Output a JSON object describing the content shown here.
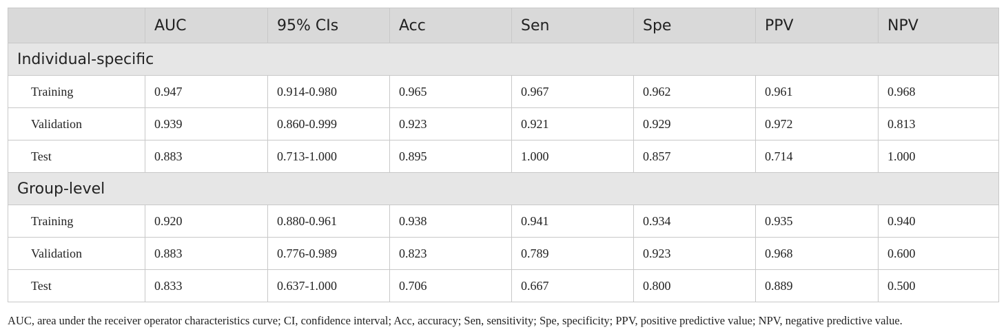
{
  "table": {
    "headers": [
      "",
      "AUC",
      "95% CIs",
      "Acc",
      "Sen",
      "Spe",
      "PPV",
      "NPV"
    ],
    "sections": [
      {
        "title": "Individual-specific",
        "rows": [
          {
            "label": "Training",
            "values": [
              "0.947",
              "0.914-0.980",
              "0.965",
              "0.967",
              "0.962",
              "0.961",
              "0.968"
            ]
          },
          {
            "label": "Validation",
            "values": [
              "0.939",
              "0.860-0.999",
              "0.923",
              "0.921",
              "0.929",
              "0.972",
              "0.813"
            ]
          },
          {
            "label": "Test",
            "values": [
              "0.883",
              "0.713-1.000",
              "0.895",
              "1.000",
              "0.857",
              "0.714",
              "1.000"
            ]
          }
        ]
      },
      {
        "title": "Group-level",
        "rows": [
          {
            "label": "Training",
            "values": [
              "0.920",
              "0.880-0.961",
              "0.938",
              "0.941",
              "0.934",
              "0.935",
              "0.940"
            ]
          },
          {
            "label": "Validation",
            "values": [
              "0.883",
              "0.776-0.989",
              "0.823",
              "0.789",
              "0.923",
              "0.968",
              "0.600"
            ]
          },
          {
            "label": "Test",
            "values": [
              "0.833",
              "0.637-1.000",
              "0.706",
              "0.667",
              "0.800",
              "0.889",
              "0.500"
            ]
          }
        ]
      }
    ]
  },
  "footnote": "AUC, area under the receiver operator characteristics curve; CI, confidence interval; Acc, accuracy; Sen, sensitivity; Spe, specificity; PPV, positive predictive value; NPV, negative predictive value."
}
